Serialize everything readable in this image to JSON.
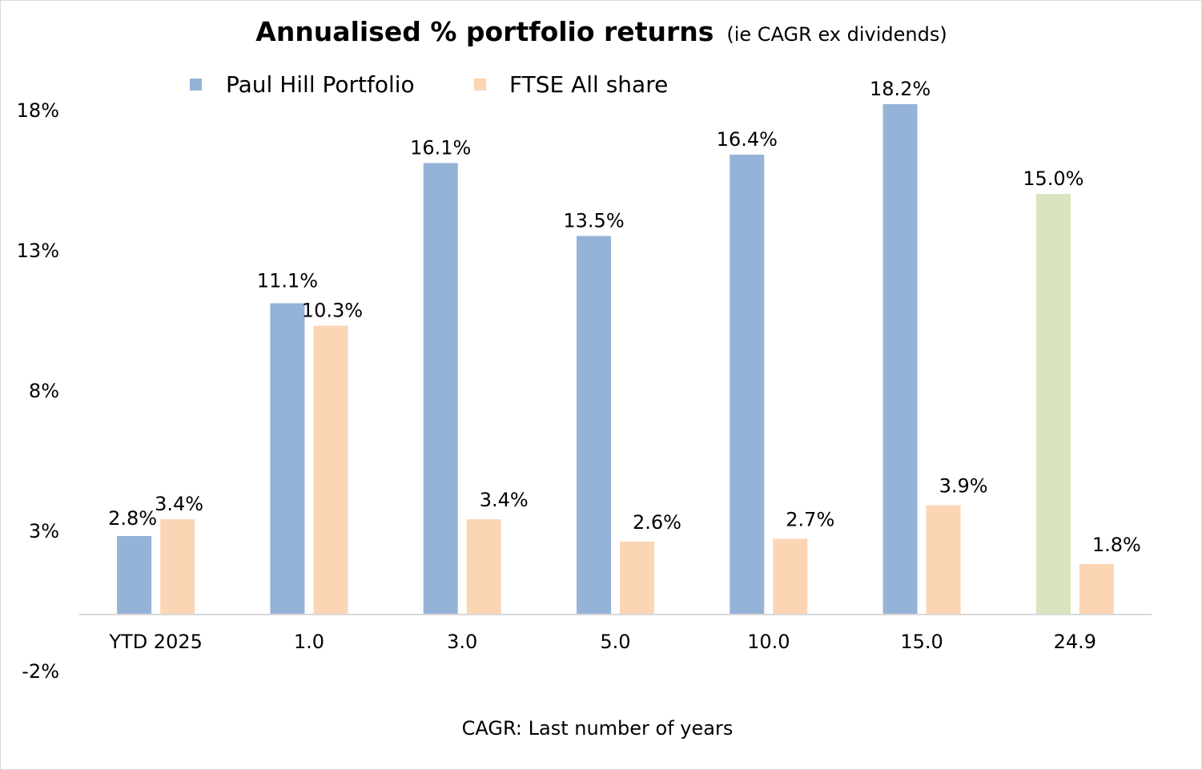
{
  "chart_data": {
    "type": "bar",
    "title": "Annualised % portfolio returns",
    "subtitle": "(ie CAGR ex dividends)",
    "xlabel": "CAGR: Last number of years",
    "ylabel": "",
    "categories": [
      "YTD 2025",
      "1.0",
      "3.0",
      "5.0",
      "10.0",
      "15.0",
      "24.9"
    ],
    "series": [
      {
        "name": "Paul Hill Portfolio",
        "color": "#95b3d7",
        "values": [
          2.8,
          11.1,
          16.1,
          13.5,
          16.4,
          18.2,
          15.0
        ],
        "point_colors": [
          "#95b3d7",
          "#95b3d7",
          "#95b3d7",
          "#95b3d7",
          "#95b3d7",
          "#95b3d7",
          "#d7e4bd"
        ],
        "labels": [
          "2.8%",
          "11.1%",
          "16.1%",
          "13.5%",
          "16.4%",
          "18.2%",
          "15.0%"
        ]
      },
      {
        "name": "FTSE All share",
        "color": "#fcd5b5",
        "values": [
          3.4,
          10.3,
          3.4,
          2.6,
          2.7,
          3.9,
          1.8
        ],
        "labels": [
          "3.4%",
          "10.3%",
          "3.4%",
          "2.6%",
          "2.7%",
          "3.9%",
          "1.8%"
        ]
      }
    ],
    "yticks": [
      -2,
      3,
      8,
      13,
      18
    ],
    "ytick_labels": [
      "-2%",
      "3%",
      "8%",
      "13%",
      "18%"
    ],
    "ylim": [
      -2,
      18
    ],
    "grid": false,
    "legend_position": "top-center"
  }
}
